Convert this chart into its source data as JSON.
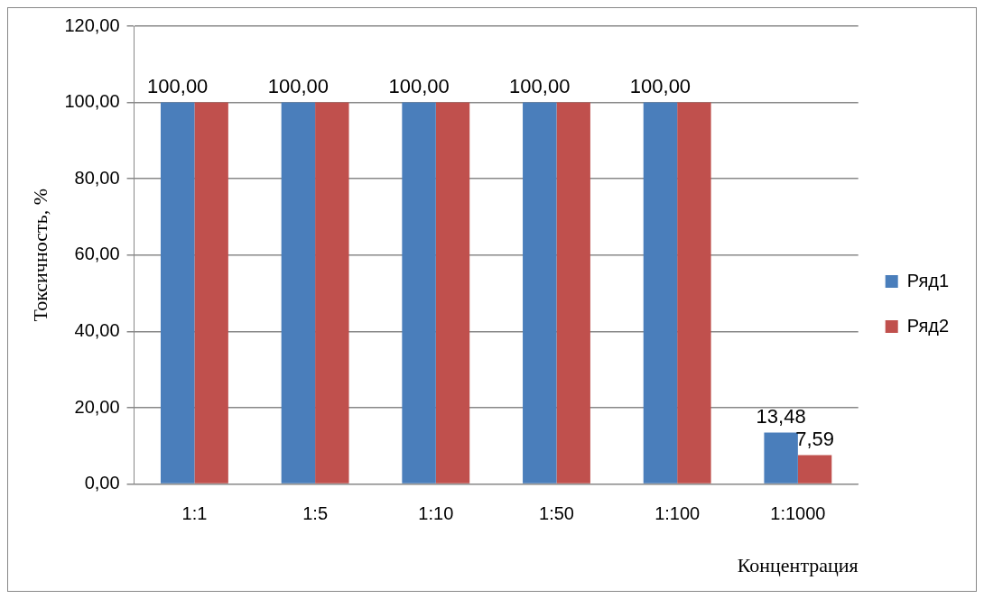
{
  "chart_data": {
    "type": "bar",
    "xlabel": "Концентрация",
    "ylabel": "Токсичность, %",
    "categories": [
      "1:1",
      "1:5",
      "1:10",
      "1:50",
      "1:100",
      "1:1000"
    ],
    "series": [
      {
        "name": "Ряд1",
        "color": "#4a7ebb",
        "values": [
          100,
          100,
          100,
          100,
          100,
          13.48
        ],
        "value_labels": [
          "100,00",
          "100,00",
          "100,00",
          "100,00",
          "100,00",
          "13,48"
        ]
      },
      {
        "name": "Ряд2",
        "color": "#c0504d",
        "values": [
          100,
          100,
          100,
          100,
          100,
          7.59
        ],
        "value_labels": [
          null,
          null,
          null,
          null,
          null,
          "7,59"
        ]
      }
    ],
    "ylim": [
      0,
      120
    ],
    "yticks": [
      {
        "value": 0,
        "label": "0,00"
      },
      {
        "value": 20,
        "label": "20,00"
      },
      {
        "value": 40,
        "label": "40,00"
      },
      {
        "value": 60,
        "label": "60,00"
      },
      {
        "value": 80,
        "label": "80,00"
      },
      {
        "value": 100,
        "label": "100,00"
      },
      {
        "value": 120,
        "label": "120,00"
      }
    ],
    "grid": "y",
    "legend": "right"
  }
}
